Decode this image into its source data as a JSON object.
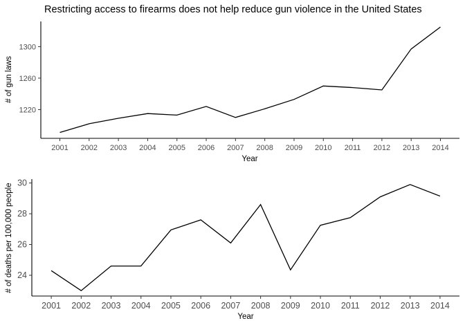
{
  "title": "Restricting access to firearms does not help reduce gun violence in the United States",
  "chart_data": [
    {
      "type": "line",
      "x": [
        2001,
        2002,
        2003,
        2004,
        2005,
        2006,
        2007,
        2008,
        2009,
        2010,
        2011,
        2012,
        2013,
        2014
      ],
      "values": [
        1191,
        1202,
        1209,
        1215,
        1213,
        1224,
        1210,
        1221,
        1233,
        1250,
        1248,
        1245,
        1297,
        1325
      ],
      "xlabel": "Year",
      "ylabel": "# of gun laws",
      "yticks": [
        1220,
        1260,
        1300
      ],
      "ylim": [
        1183.5,
        1332
      ],
      "xlim": [
        2000.35,
        2014.65
      ],
      "grid": false
    },
    {
      "type": "line",
      "x": [
        2001,
        2002,
        2003,
        2004,
        2005,
        2006,
        2007,
        2008,
        2009,
        2010,
        2011,
        2012,
        2013,
        2014
      ],
      "values": [
        24.3,
        23.0,
        24.6,
        24.6,
        26.95,
        27.6,
        26.1,
        28.6,
        24.35,
        27.25,
        27.75,
        29.1,
        29.9,
        29.15
      ],
      "xlabel": "Year",
      "ylabel": "# of deaths per 100,000 people",
      "yticks": [
        24,
        26,
        28,
        30
      ],
      "ylim": [
        22.65,
        30.25
      ],
      "xlim": [
        2000.35,
        2014.65
      ],
      "grid": false
    }
  ]
}
